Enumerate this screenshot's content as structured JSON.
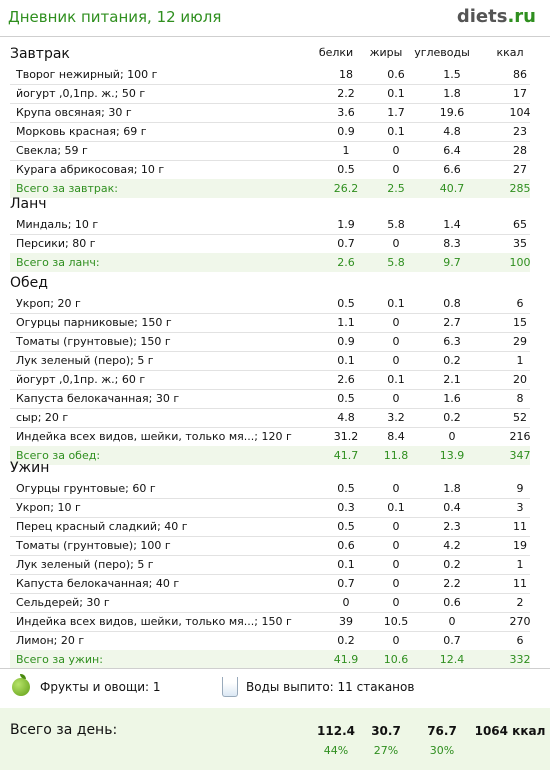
{
  "header": {
    "title": "Дневник питания, 12 июля",
    "brand_main": "diets",
    "brand_tld": ".ru"
  },
  "columns": {
    "protein": "белки",
    "fat": "жиры",
    "carbs": "углеводы",
    "kcal": "ккал"
  },
  "sections": [
    {
      "title": "Завтрак",
      "items": [
        {
          "name": "Творог нежирный; 100 г",
          "p": "18",
          "f": "0.6",
          "c": "1.5",
          "k": "86"
        },
        {
          "name": "йогурт ,0,1пр. ж.; 50 г",
          "p": "2.2",
          "f": "0.1",
          "c": "1.8",
          "k": "17"
        },
        {
          "name": "Крупа овсяная; 30 г",
          "p": "3.6",
          "f": "1.7",
          "c": "19.6",
          "k": "104"
        },
        {
          "name": "Морковь красная; 69 г",
          "p": "0.9",
          "f": "0.1",
          "c": "4.8",
          "k": "23"
        },
        {
          "name": "Свекла; 59 г",
          "p": "1",
          "f": "0",
          "c": "6.4",
          "k": "28"
        },
        {
          "name": "Курага абрикосовая; 10 г",
          "p": "0.5",
          "f": "0",
          "c": "6.6",
          "k": "27"
        }
      ],
      "total": {
        "name": "Всего за завтрак:",
        "p": "26.2",
        "f": "2.5",
        "c": "40.7",
        "k": "285"
      }
    },
    {
      "title": "Ланч",
      "items": [
        {
          "name": "Миндаль; 10 г",
          "p": "1.9",
          "f": "5.8",
          "c": "1.4",
          "k": "65"
        },
        {
          "name": "Персики; 80 г",
          "p": "0.7",
          "f": "0",
          "c": "8.3",
          "k": "35"
        }
      ],
      "total": {
        "name": "Всего за ланч:",
        "p": "2.6",
        "f": "5.8",
        "c": "9.7",
        "k": "100"
      }
    },
    {
      "title": "Обед",
      "items": [
        {
          "name": "Укроп; 20 г",
          "p": "0.5",
          "f": "0.1",
          "c": "0.8",
          "k": "6"
        },
        {
          "name": "Огурцы парниковые; 150 г",
          "p": "1.1",
          "f": "0",
          "c": "2.7",
          "k": "15"
        },
        {
          "name": "Томаты (грунтовые); 150 г",
          "p": "0.9",
          "f": "0",
          "c": "6.3",
          "k": "29"
        },
        {
          "name": "Лук зеленый (перо); 5 г",
          "p": "0.1",
          "f": "0",
          "c": "0.2",
          "k": "1"
        },
        {
          "name": "йогурт ,0,1пр. ж.; 60 г",
          "p": "2.6",
          "f": "0.1",
          "c": "2.1",
          "k": "20"
        },
        {
          "name": "Капуста белокачанная; 30 г",
          "p": "0.5",
          "f": "0",
          "c": "1.6",
          "k": "8"
        },
        {
          "name": "сыр; 20 г",
          "p": "4.8",
          "f": "3.2",
          "c": "0.2",
          "k": "52"
        },
        {
          "name": "Индейка всех видов, шейки, только мя...; 120 г",
          "p": "31.2",
          "f": "8.4",
          "c": "0",
          "k": "216"
        }
      ],
      "total": {
        "name": "Всего за обед:",
        "p": "41.7",
        "f": "11.8",
        "c": "13.9",
        "k": "347"
      }
    },
    {
      "title": "Ужин",
      "items": [
        {
          "name": "Огурцы грунтовые; 60 г",
          "p": "0.5",
          "f": "0",
          "c": "1.8",
          "k": "9"
        },
        {
          "name": "Укроп; 10 г",
          "p": "0.3",
          "f": "0.1",
          "c": "0.4",
          "k": "3"
        },
        {
          "name": "Перец красный сладкий; 40 г",
          "p": "0.5",
          "f": "0",
          "c": "2.3",
          "k": "11"
        },
        {
          "name": "Томаты (грунтовые); 100 г",
          "p": "0.6",
          "f": "0",
          "c": "4.2",
          "k": "19"
        },
        {
          "name": "Лук зеленый (перо); 5 г",
          "p": "0.1",
          "f": "0",
          "c": "0.2",
          "k": "1"
        },
        {
          "name": "Капуста белокачанная; 40 г",
          "p": "0.7",
          "f": "0",
          "c": "2.2",
          "k": "11"
        },
        {
          "name": "Сельдерей; 30 г",
          "p": "0",
          "f": "0",
          "c": "0.6",
          "k": "2"
        },
        {
          "name": "Индейка всех видов, шейки, только мя...; 150 г",
          "p": "39",
          "f": "10.5",
          "c": "0",
          "k": "270"
        },
        {
          "name": "Лимон; 20 г",
          "p": "0.2",
          "f": "0",
          "c": "0.7",
          "k": "6"
        }
      ],
      "total": {
        "name": "Всего за ужин:",
        "p": "41.9",
        "f": "10.6",
        "c": "12.4",
        "k": "332"
      }
    }
  ],
  "extras": {
    "fruits_label": "Фрукты и овощи: 1",
    "water_label": "Воды выпито: 11 стаканов",
    "fruit_icon": "apple-icon",
    "water_icon": "glass-icon"
  },
  "day": {
    "label": "Всего за день:",
    "p": "112.4",
    "f": "30.7",
    "c": "76.7",
    "k": "1064 ккал",
    "p_pct": "44%",
    "f_pct": "27%",
    "c_pct": "30%"
  },
  "colors": {
    "accent": "#2f8f1f",
    "total_bg": "#f0f7ea",
    "day_bg": "#eef7e6"
  }
}
